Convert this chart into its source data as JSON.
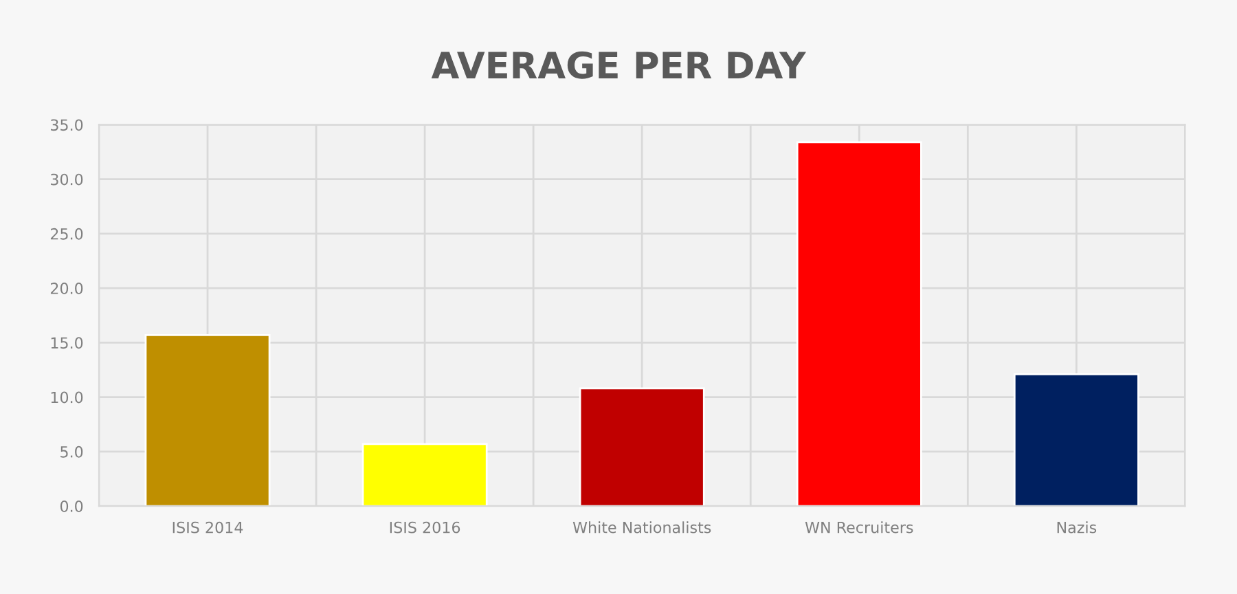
{
  "chart_data": {
    "type": "bar",
    "title": "AVERAGE PER DAY",
    "categories": [
      "ISIS 2014",
      "ISIS 2016",
      "White Nationalists",
      "WN Recruiters",
      "Nazis"
    ],
    "values": [
      15.7,
      5.7,
      10.8,
      33.4,
      12.1
    ],
    "colors": [
      "#bf8f00",
      "#ffff00",
      "#c00000",
      "#ff0000",
      "#002060"
    ],
    "ylim": [
      0,
      35
    ],
    "yticks": [
      {
        "value": 0,
        "label": "0.0"
      },
      {
        "value": 5,
        "label": "5.0"
      },
      {
        "value": 10,
        "label": "10.0"
      },
      {
        "value": 15,
        "label": "15.0"
      },
      {
        "value": 20,
        "label": "20.0"
      },
      {
        "value": 25,
        "label": "25.0"
      },
      {
        "value": 30,
        "label": "30.0"
      },
      {
        "value": 35,
        "label": "35.0"
      }
    ],
    "grid": true
  }
}
